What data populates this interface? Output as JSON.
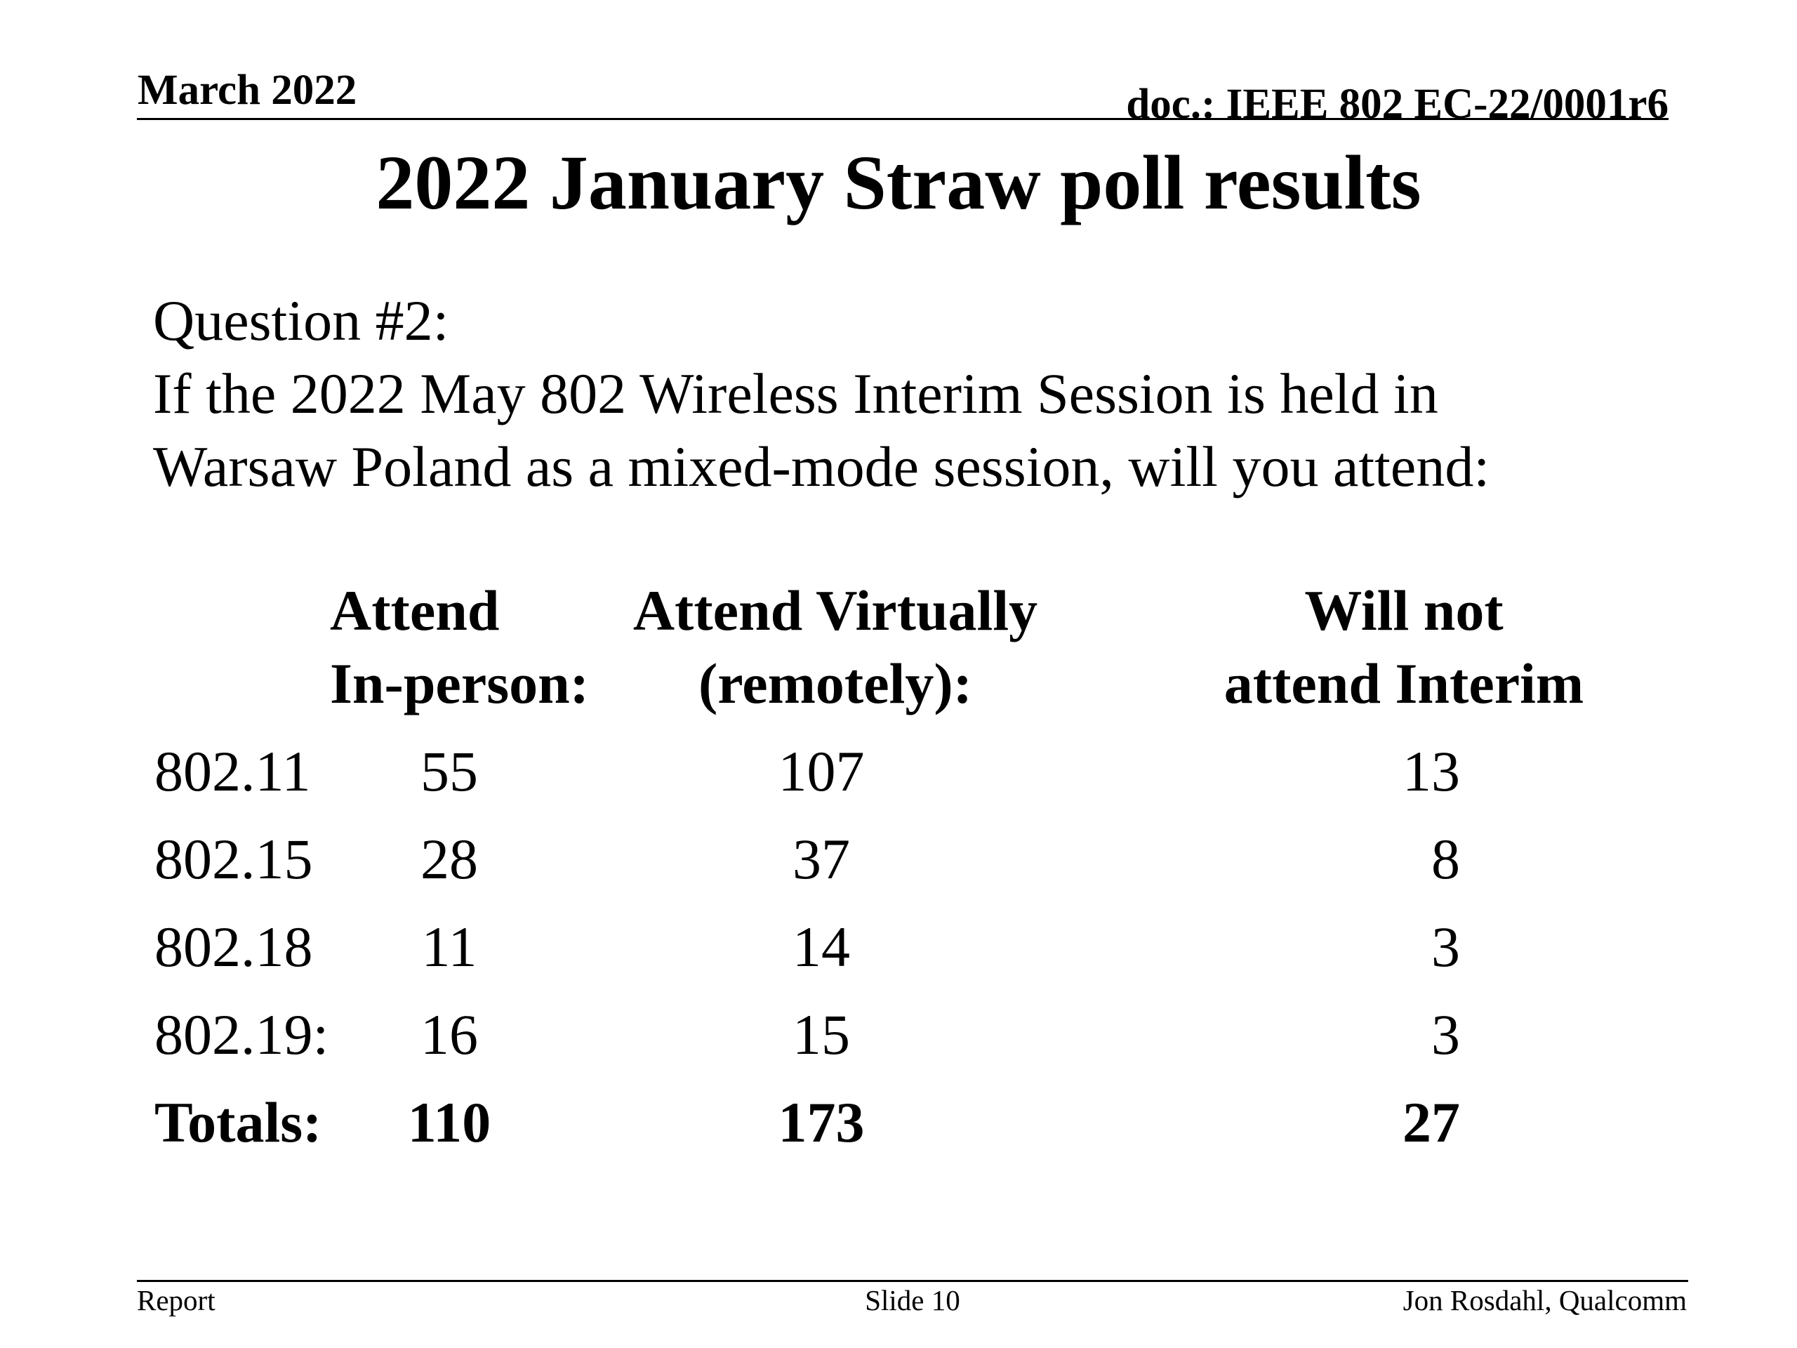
{
  "header": {
    "date": "March 2022",
    "doc_id": "doc.: IEEE 802 EC-22/0001r6"
  },
  "title": "2022 January Straw poll results",
  "question": {
    "label": "Question #2:",
    "line1": "If the 2022 May 802 Wireless Interim Session is held in",
    "line2": "Warsaw Poland as a mixed-mode session, will you attend:"
  },
  "table": {
    "columns": [
      {
        "line1": "Attend",
        "line2": "In-person:"
      },
      {
        "line1": "Attend Virtually",
        "line2": "(remotely):"
      },
      {
        "line1": "Will not",
        "line2": "attend Interim"
      }
    ],
    "rows": [
      {
        "label": "802.11",
        "in_person": "55",
        "virtual": "107",
        "not_attend": "13"
      },
      {
        "label": "802.15",
        "in_person": "28",
        "virtual": "37",
        "not_attend": "8"
      },
      {
        "label": "802.18",
        "in_person": "11",
        "virtual": "14",
        "not_attend": "3"
      },
      {
        "label": "802.19:",
        "in_person": "16",
        "virtual": "15",
        "not_attend": "3"
      }
    ],
    "totals": {
      "label": "Totals:",
      "in_person": "110",
      "virtual": "173",
      "not_attend": "27"
    }
  },
  "footer": {
    "left": "Report",
    "center": "Slide 10",
    "right": "Jon Rosdahl, Qualcomm"
  }
}
